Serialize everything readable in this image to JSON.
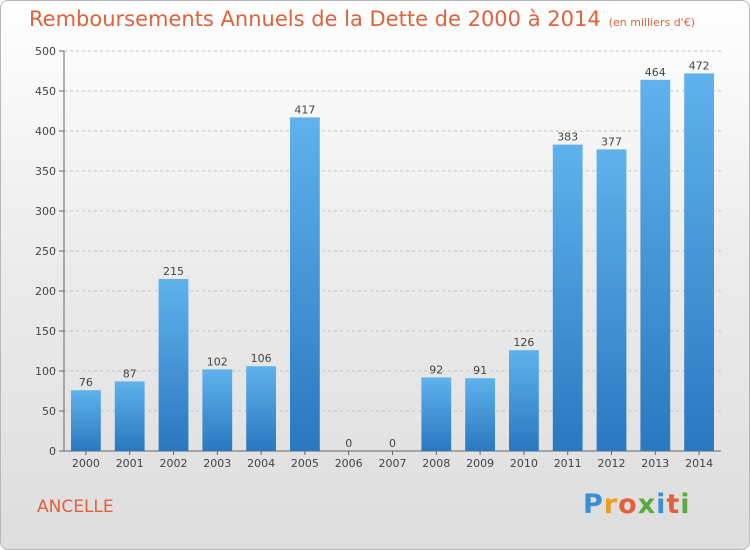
{
  "title": "Remboursements Annuels de la Dette de 2000 à 2014",
  "subtitle": "(en milliers d'€)",
  "commune": "ANCELLE",
  "logo": {
    "text": "Proxiti",
    "letter_colors": [
      "#3a8fd3",
      "#e8a020",
      "#e2603a",
      "#5aab3e",
      "#3a8fd3",
      "#e2603a",
      "#5aab3e"
    ]
  },
  "chart_data": {
    "type": "bar",
    "categories": [
      "2000",
      "2001",
      "2002",
      "2003",
      "2004",
      "2005",
      "2006",
      "2007",
      "2008",
      "2009",
      "2010",
      "2011",
      "2012",
      "2013",
      "2014"
    ],
    "values": [
      76,
      87,
      215,
      102,
      106,
      417,
      0,
      0,
      92,
      91,
      126,
      383,
      377,
      464,
      472
    ],
    "ylim": [
      0,
      500
    ],
    "yticks": [
      0,
      50,
      100,
      150,
      200,
      250,
      300,
      350,
      400,
      450,
      500
    ],
    "grid": true,
    "bar_color": "#3a8fd3",
    "data_labels": true
  }
}
